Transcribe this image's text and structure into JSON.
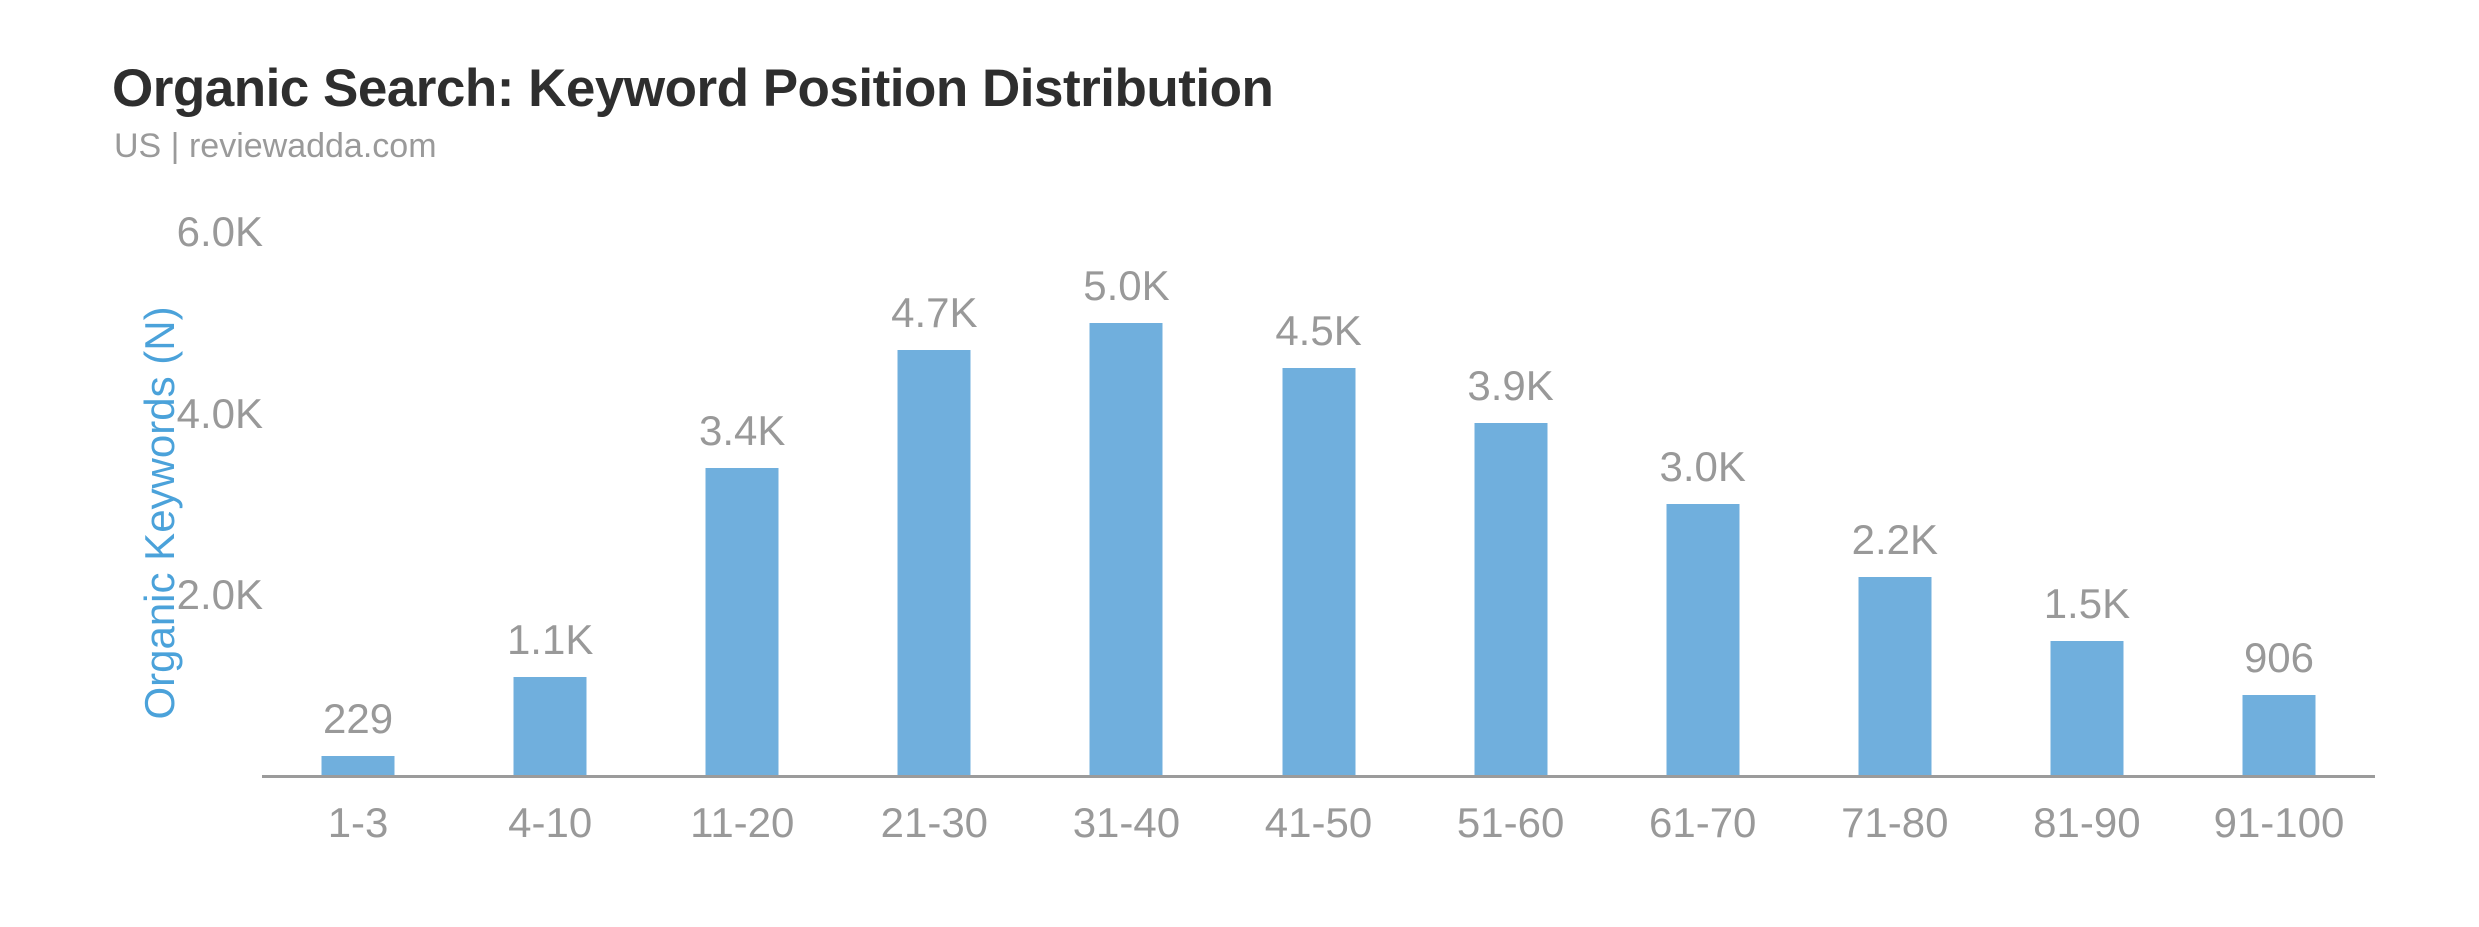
{
  "header": {
    "title": "Organic Search: Keyword Position Distribution",
    "subtitle": "US | reviewadda.com"
  },
  "chart_data": {
    "type": "bar",
    "title": "Organic Search: Keyword Position Distribution",
    "subtitle": "US | reviewadda.com",
    "xlabel": "",
    "ylabel": "Organic Keywords (N)",
    "categories": [
      "1-3",
      "4-10",
      "11-20",
      "21-30",
      "31-40",
      "41-50",
      "51-60",
      "61-70",
      "71-80",
      "81-90",
      "91-100"
    ],
    "values": [
      229,
      1100,
      3400,
      4700,
      5000,
      4500,
      3900,
      3000,
      2200,
      1500,
      906
    ],
    "value_labels": [
      "229",
      "1.1K",
      "3.4K",
      "4.7K",
      "5.0K",
      "4.5K",
      "3.9K",
      "3.0K",
      "2.2K",
      "1.5K",
      "906"
    ],
    "ylim": [
      0,
      6000
    ],
    "yticks": [
      {
        "value": 6000,
        "label": "6.0K"
      },
      {
        "value": 4000,
        "label": "4.0K"
      },
      {
        "value": 2000,
        "label": "2.0K"
      }
    ],
    "grid": false,
    "legend": "none",
    "colors": {
      "bar": "#70afdd",
      "labels": "#999999",
      "axis_line": "#9b9b9b",
      "y_axis_title": "#4ba2da",
      "title": "#2e2e2e",
      "subtitle": "#9a9a9a",
      "background": "#ffffff"
    }
  }
}
